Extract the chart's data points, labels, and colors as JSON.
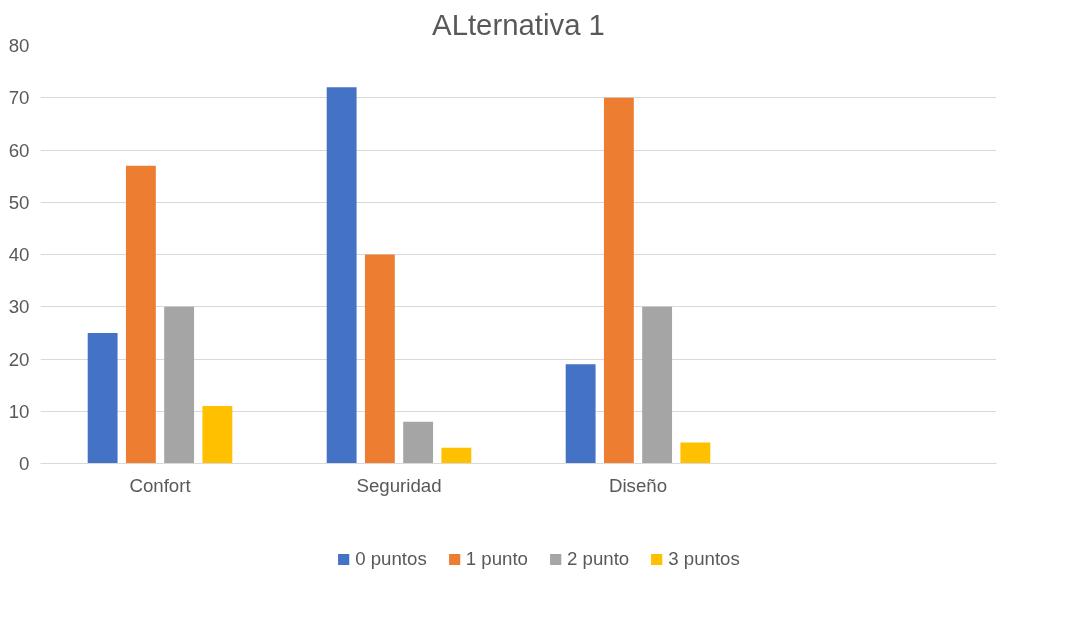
{
  "chart_data": {
    "type": "bar",
    "title": "ALternativa 1",
    "categories": [
      "Confort",
      "Seguridad",
      "Diseño",
      null
    ],
    "series": [
      {
        "name": "0 puntos",
        "color": "#4472c4",
        "values": [
          25,
          72,
          19,
          null
        ]
      },
      {
        "name": "1 punto",
        "color": "#ed7d31",
        "values": [
          57,
          40,
          70,
          null
        ]
      },
      {
        "name": "2 punto",
        "color": "#a5a5a5",
        "values": [
          30,
          8,
          30,
          null
        ]
      },
      {
        "name": "3 puntos",
        "color": "#ffc000",
        "values": [
          11,
          3,
          4,
          null
        ]
      }
    ],
    "ylim": [
      0,
      80
    ],
    "yticks": [
      0,
      10,
      20,
      30,
      40,
      50,
      60,
      70,
      80
    ],
    "grid": "y",
    "legend": "bottom"
  }
}
